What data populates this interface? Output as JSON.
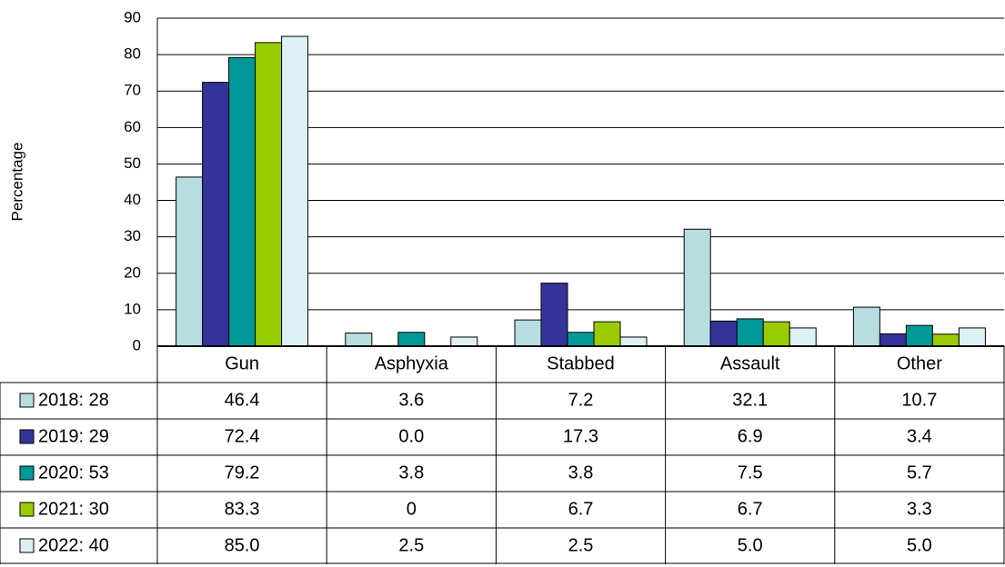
{
  "chart_data": {
    "type": "bar",
    "y_label": "Percentage",
    "categories": [
      "Gun",
      "Asphyxia",
      "Stabbed",
      "Assault",
      "Other"
    ],
    "series": [
      {
        "name": "2018: 28",
        "color": "#b7dde1",
        "values": [
          46.4,
          3.6,
          7.2,
          32.1,
          10.7
        ],
        "value_labels": [
          "46.4",
          "3.6",
          "7.2",
          "32.1",
          "10.7"
        ]
      },
      {
        "name": "2019: 29",
        "color": "#333399",
        "values": [
          72.4,
          0,
          17.3,
          6.9,
          3.4
        ],
        "value_labels": [
          "72.4",
          "0.0",
          "17.3",
          "6.9",
          "3.4"
        ]
      },
      {
        "name": "2020: 53",
        "color": "#009999",
        "values": [
          79.2,
          3.8,
          3.8,
          7.5,
          5.7
        ],
        "value_labels": [
          "79.2",
          "3.8",
          "3.8",
          "7.5",
          "5.7"
        ]
      },
      {
        "name": "2021: 30",
        "color": "#99cc00",
        "values": [
          83.3,
          0,
          6.7,
          6.7,
          3.3
        ],
        "value_labels": [
          "83.3",
          "0",
          "6.7",
          "6.7",
          "3.3"
        ]
      },
      {
        "name": "2022: 40",
        "color": "#ddf0f3",
        "values": [
          85.0,
          2.5,
          2.5,
          5.0,
          5.0
        ],
        "value_labels": [
          "85.0",
          "2.5",
          "2.5",
          "5.0",
          "5.0"
        ]
      }
    ],
    "ylim": [
      0,
      90
    ],
    "yticks": [
      0,
      10,
      20,
      30,
      40,
      50,
      60,
      70,
      80,
      90
    ],
    "grid": true
  }
}
